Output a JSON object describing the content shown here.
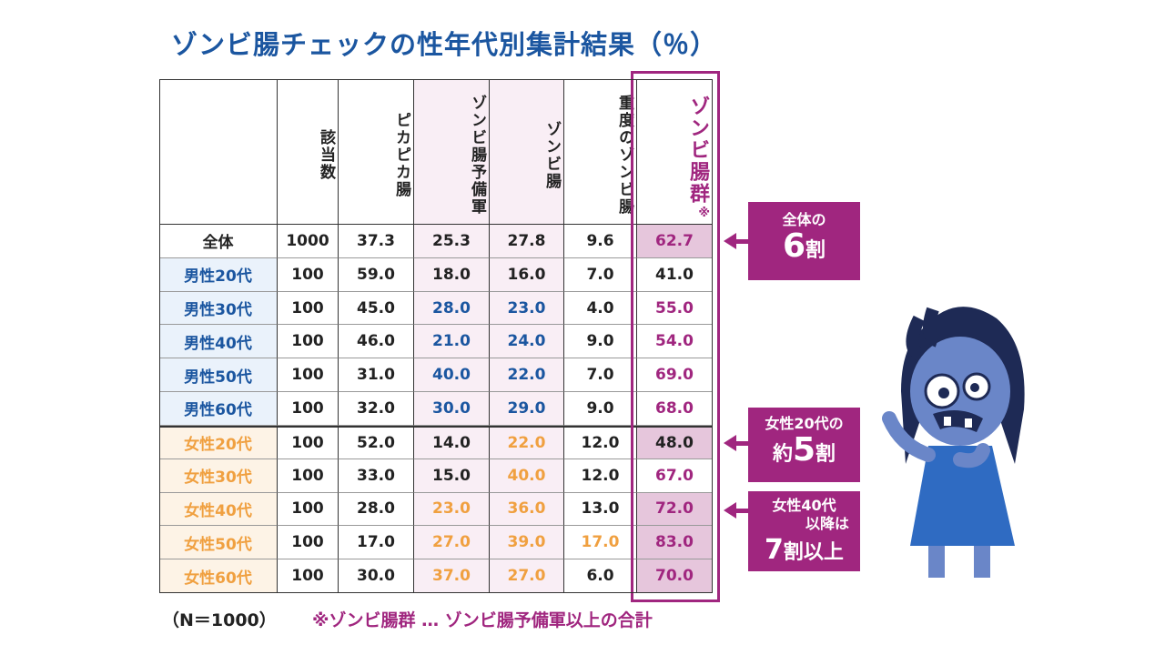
{
  "title": "ゾンビ腸チェックの性年代別集計結果（％）",
  "table": {
    "header": [
      "該当数",
      "ピカピカ腸",
      "ゾンビ腸予備軍",
      "ゾンビ腸",
      "重度のゾンビ腸",
      "ゾンビ腸群"
    ],
    "header_note": "※",
    "rows": [
      [
        "全体",
        "1000",
        "37.3",
        "25.3",
        "27.8",
        "9.6",
        "62.7"
      ],
      [
        "男性20代",
        "100",
        "59.0",
        "18.0",
        "16.0",
        "7.0",
        "41.0"
      ],
      [
        "男性30代",
        "100",
        "45.0",
        "28.0",
        "23.0",
        "4.0",
        "55.0"
      ],
      [
        "男性40代",
        "100",
        "46.0",
        "21.0",
        "24.0",
        "9.0",
        "54.0"
      ],
      [
        "男性50代",
        "100",
        "31.0",
        "40.0",
        "22.0",
        "7.0",
        "69.0"
      ],
      [
        "男性60代",
        "100",
        "32.0",
        "30.0",
        "29.0",
        "9.0",
        "68.0"
      ],
      [
        "女性20代",
        "100",
        "52.0",
        "14.0",
        "22.0",
        "12.0",
        "48.0"
      ],
      [
        "女性30代",
        "100",
        "33.0",
        "15.0",
        "40.0",
        "12.0",
        "67.0"
      ],
      [
        "女性40代",
        "100",
        "28.0",
        "23.0",
        "36.0",
        "13.0",
        "72.0"
      ],
      [
        "女性50代",
        "100",
        "17.0",
        "27.0",
        "39.0",
        "17.0",
        "83.0"
      ],
      [
        "女性60代",
        "100",
        "30.0",
        "37.0",
        "27.0",
        "6.0",
        "70.0"
      ]
    ]
  },
  "callouts": [
    {
      "line1": "全体の",
      "big": "6",
      "suffix": "割"
    },
    {
      "line1": "女性20代の",
      "prefix": "約",
      "big": "5",
      "suffix": "割"
    },
    {
      "line1": "女性40代",
      "line2": "以降は",
      "big": "7",
      "suffix": "割以上"
    }
  ],
  "footer": {
    "n": "（N＝1000）",
    "note": "※ゾンビ腸群 … ゾンビ腸予備軍以上の合計"
  }
}
